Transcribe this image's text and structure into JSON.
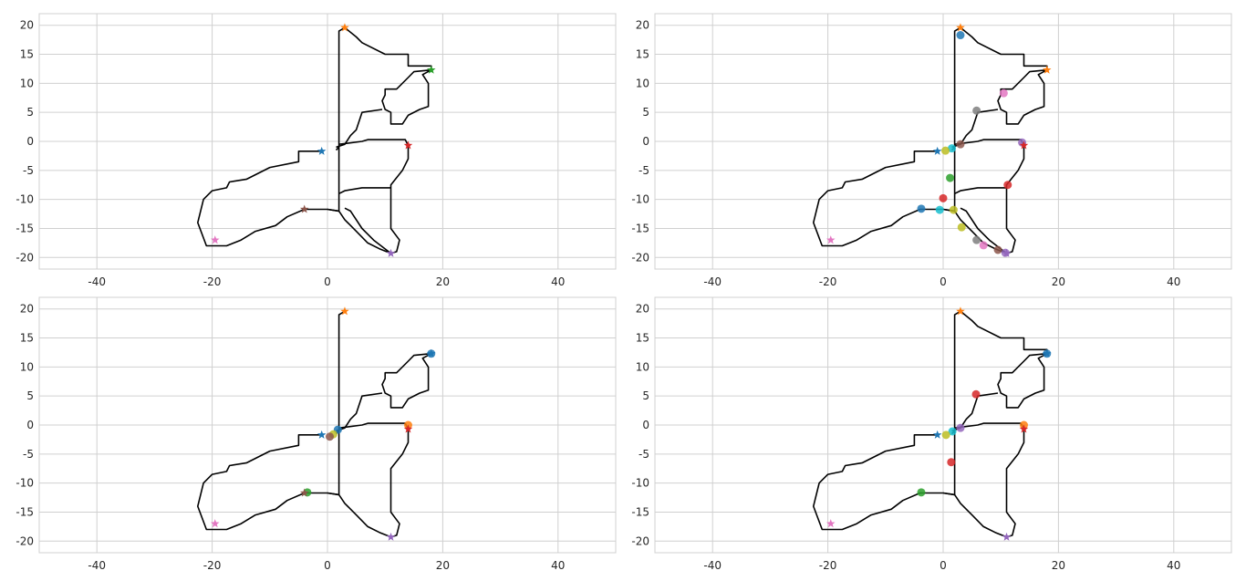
{
  "chart_data": [
    {
      "type": "scatter",
      "title": "",
      "xlabel": "",
      "ylabel": "",
      "xlim": [
        -50,
        50
      ],
      "ylim": [
        -22,
        22
      ],
      "xticks": [
        -40,
        -20,
        0,
        20,
        40
      ],
      "yticks": [
        -20,
        -15,
        -10,
        -5,
        0,
        5,
        10,
        15,
        20
      ],
      "grid": true,
      "stars": [
        {
          "x": -1,
          "y": -1.7,
          "color": "#1f77b4"
        },
        {
          "x": 3,
          "y": 19.6,
          "color": "#ff7f0e"
        },
        {
          "x": 18,
          "y": 12.3,
          "color": "#2ca02c"
        },
        {
          "x": 14,
          "y": -0.7,
          "color": "#d62728"
        },
        {
          "x": 11,
          "y": -19.3,
          "color": "#9467bd"
        },
        {
          "x": -4,
          "y": -11.7,
          "color": "#8c564b"
        },
        {
          "x": -19.5,
          "y": -17,
          "color": "#e377c2"
        }
      ],
      "points": [],
      "lines": "network_full"
    },
    {
      "type": "scatter",
      "title": "",
      "xlabel": "",
      "ylabel": "",
      "xlim": [
        -50,
        50
      ],
      "ylim": [
        -22,
        22
      ],
      "xticks": [
        -40,
        -20,
        0,
        20,
        40
      ],
      "yticks": [
        -20,
        -15,
        -10,
        -5,
        0,
        5,
        10,
        15,
        20
      ],
      "grid": true,
      "stars": [
        {
          "x": -1,
          "y": -1.7,
          "color": "#1f77b4"
        },
        {
          "x": 3,
          "y": 19.6,
          "color": "#ff7f0e"
        },
        {
          "x": 18,
          "y": 12.3,
          "color": "#ff7f0e"
        },
        {
          "x": 14,
          "y": -0.7,
          "color": "#d62728"
        },
        {
          "x": 11,
          "y": -19.3,
          "color": "#9467bd"
        },
        {
          "x": -19.5,
          "y": -17,
          "color": "#e377c2"
        }
      ],
      "points": [
        {
          "x": 3,
          "y": 18.3,
          "color": "#1f77b4"
        },
        {
          "x": 10.5,
          "y": 8.3,
          "color": "#e377c2"
        },
        {
          "x": 5.8,
          "y": 5.3,
          "color": "#7f7f7f"
        },
        {
          "x": 13.7,
          "y": -0.2,
          "color": "#9467bd"
        },
        {
          "x": 3,
          "y": -0.5,
          "color": "#8c564b"
        },
        {
          "x": 1.5,
          "y": -1.2,
          "color": "#17becf"
        },
        {
          "x": 0.4,
          "y": -1.6,
          "color": "#bcbd22"
        },
        {
          "x": 1.2,
          "y": -6.3,
          "color": "#2ca02c"
        },
        {
          "x": 11.2,
          "y": -7.5,
          "color": "#d62728"
        },
        {
          "x": 0,
          "y": -9.8,
          "color": "#d62728"
        },
        {
          "x": -3.8,
          "y": -11.6,
          "color": "#1f77b4"
        },
        {
          "x": -0.6,
          "y": -11.8,
          "color": "#17becf"
        },
        {
          "x": 1.8,
          "y": -11.8,
          "color": "#bcbd22"
        },
        {
          "x": 3.2,
          "y": -14.8,
          "color": "#bcbd22"
        },
        {
          "x": 5.8,
          "y": -17,
          "color": "#7f7f7f"
        },
        {
          "x": 7,
          "y": -17.9,
          "color": "#e377c2"
        },
        {
          "x": 9.5,
          "y": -18.7,
          "color": "#8c564b"
        },
        {
          "x": 10.8,
          "y": -19.2,
          "color": "#9467bd"
        }
      ],
      "lines": "network_full"
    },
    {
      "type": "scatter",
      "title": "",
      "xlabel": "",
      "ylabel": "",
      "xlim": [
        -50,
        50
      ],
      "ylim": [
        -22,
        22
      ],
      "xticks": [
        -40,
        -20,
        0,
        20,
        40
      ],
      "yticks": [
        -20,
        -15,
        -10,
        -5,
        0,
        5,
        10,
        15,
        20
      ],
      "grid": true,
      "stars": [
        {
          "x": -1,
          "y": -1.7,
          "color": "#1f77b4"
        },
        {
          "x": 3,
          "y": 19.6,
          "color": "#ff7f0e"
        },
        {
          "x": 18,
          "y": 12.3,
          "color": "#1f77b4"
        },
        {
          "x": 14,
          "y": -0.7,
          "color": "#d62728"
        },
        {
          "x": 11,
          "y": -19.3,
          "color": "#9467bd"
        },
        {
          "x": -4,
          "y": -11.7,
          "color": "#8c564b"
        },
        {
          "x": -19.5,
          "y": -17,
          "color": "#e377c2"
        }
      ],
      "points": [
        {
          "x": 18,
          "y": 12.3,
          "color": "#1f77b4"
        },
        {
          "x": 14,
          "y": 0,
          "color": "#ff7f0e"
        },
        {
          "x": 1.8,
          "y": -0.8,
          "color": "#1f77b4"
        },
        {
          "x": 1,
          "y": -1.6,
          "color": "#bcbd22"
        },
        {
          "x": 0.4,
          "y": -2,
          "color": "#8c564b"
        },
        {
          "x": -3.5,
          "y": -11.6,
          "color": "#2ca02c"
        }
      ],
      "lines": "network_partial_a"
    },
    {
      "type": "scatter",
      "title": "",
      "xlabel": "",
      "ylabel": "",
      "xlim": [
        -50,
        50
      ],
      "ylim": [
        -22,
        22
      ],
      "xticks": [
        -40,
        -20,
        0,
        20,
        40
      ],
      "yticks": [
        -20,
        -15,
        -10,
        -5,
        0,
        5,
        10,
        15,
        20
      ],
      "grid": true,
      "stars": [
        {
          "x": -1,
          "y": -1.7,
          "color": "#1f77b4"
        },
        {
          "x": 3,
          "y": 19.6,
          "color": "#ff7f0e"
        },
        {
          "x": 18,
          "y": 12.3,
          "color": "#1f77b4"
        },
        {
          "x": 14,
          "y": -0.7,
          "color": "#d62728"
        },
        {
          "x": 11,
          "y": -19.3,
          "color": "#9467bd"
        },
        {
          "x": -19.5,
          "y": -17,
          "color": "#e377c2"
        }
      ],
      "points": [
        {
          "x": 18,
          "y": 12.3,
          "color": "#1f77b4"
        },
        {
          "x": 5.7,
          "y": 5.3,
          "color": "#d62728"
        },
        {
          "x": 14,
          "y": 0,
          "color": "#ff7f0e"
        },
        {
          "x": 3,
          "y": -0.5,
          "color": "#9467bd"
        },
        {
          "x": 1.6,
          "y": -1.1,
          "color": "#17becf"
        },
        {
          "x": 0.5,
          "y": -1.7,
          "color": "#bcbd22"
        },
        {
          "x": 1.4,
          "y": -6.4,
          "color": "#d62728"
        },
        {
          "x": -3.8,
          "y": -11.6,
          "color": "#2ca02c"
        }
      ],
      "lines": "network_partial_b"
    }
  ]
}
